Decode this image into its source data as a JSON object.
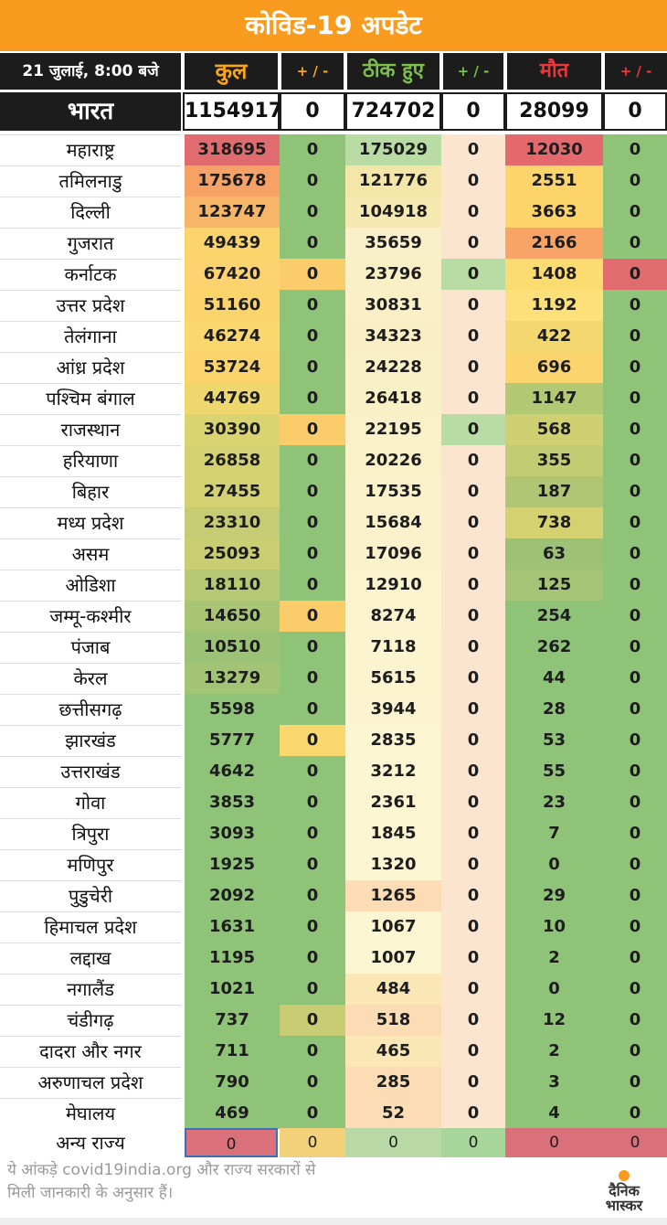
{
  "title": "कोविड-19 अपडेट",
  "header": {
    "date": "21 जुलाई, 8:00 बजे",
    "total": "कुल",
    "recovered": "ठीक हुए",
    "deaths": "मौत",
    "delta": "+ / -"
  },
  "india": {
    "name": "भारत",
    "total": "1154917",
    "total_delta": "0",
    "recovered": "724702",
    "recovered_delta": "0",
    "deaths": "28099",
    "deaths_delta": "0"
  },
  "columns": [
    "state",
    "total",
    "total_delta",
    "recovered",
    "recovered_delta",
    "deaths",
    "deaths_delta"
  ],
  "states": [
    {
      "name": "महाराष्ट्र",
      "v": [
        "318695",
        "0",
        "175029",
        "0",
        "12030",
        "0"
      ],
      "c": [
        "#e06c6f",
        "#8fc478",
        "#b9dca4",
        "#fbe5cf",
        "#e4696c",
        "#8fc478"
      ]
    },
    {
      "name": "तमिलनाडु",
      "v": [
        "175678",
        "0",
        "121776",
        "0",
        "2551",
        "0"
      ],
      "c": [
        "#f6a266",
        "#8fc478",
        "#f3e6a8",
        "#fbe5cf",
        "#fdd46a",
        "#8fc478"
      ]
    },
    {
      "name": "दिल्ली",
      "v": [
        "123747",
        "0",
        "104918",
        "0",
        "3663",
        "0"
      ],
      "c": [
        "#f7b568",
        "#8fc478",
        "#f6e8b1",
        "#fbe5cf",
        "#fdd46a",
        "#8fc478"
      ]
    },
    {
      "name": "गुजरात",
      "v": [
        "49439",
        "0",
        "35659",
        "0",
        "2166",
        "0"
      ],
      "c": [
        "#fbd56c",
        "#8fc478",
        "#f9efc8",
        "#fbe5cf",
        "#f8a466",
        "#8fc478"
      ]
    },
    {
      "name": "कर्नाटक",
      "v": [
        "67420",
        "0",
        "23796",
        "0",
        "1408",
        "0"
      ],
      "c": [
        "#fcd36e",
        "#fbcd6a",
        "#faf0c6",
        "#b9dca4",
        "#fcdc70",
        "#e06c6f"
      ]
    },
    {
      "name": "उत्तर प्रदेश",
      "v": [
        "51160",
        "0",
        "30831",
        "0",
        "1192",
        "0"
      ],
      "c": [
        "#fbd56c",
        "#8fc478",
        "#faefc5",
        "#fbe5cf",
        "#fde07a",
        "#8fc478"
      ]
    },
    {
      "name": "तेलंगाना",
      "v": [
        "46274",
        "0",
        "34323",
        "0",
        "422",
        "0"
      ],
      "c": [
        "#fbd86e",
        "#8fc478",
        "#faeec4",
        "#fbe5cf",
        "#f3d76f",
        "#8fc478"
      ]
    },
    {
      "name": "आंध्र प्रदेश",
      "v": [
        "53724",
        "0",
        "24228",
        "0",
        "696",
        "0"
      ],
      "c": [
        "#fbd56c",
        "#8fc478",
        "#faf0c6",
        "#fbe5cf",
        "#fbd46e",
        "#8fc478"
      ]
    },
    {
      "name": "पश्चिम बंगाल",
      "v": [
        "44769",
        "0",
        "26418",
        "0",
        "1147",
        "0"
      ],
      "c": [
        "#eed86e",
        "#8fc478",
        "#faf0c6",
        "#fbe5cf",
        "#b3c873",
        "#8fc478"
      ]
    },
    {
      "name": "राजस्थान",
      "v": [
        "30390",
        "0",
        "22195",
        "0",
        "568",
        "0"
      ],
      "c": [
        "#d9d471",
        "#fbcd6a",
        "#faf1c8",
        "#b9dca4",
        "#cfd072",
        "#8fc478"
      ]
    },
    {
      "name": "हरियाणा",
      "v": [
        "26858",
        "0",
        "20226",
        "0",
        "355",
        "0"
      ],
      "c": [
        "#d4d172",
        "#8fc478",
        "#faf1c9",
        "#fbe5cf",
        "#c2cc73",
        "#8fc478"
      ]
    },
    {
      "name": "बिहार",
      "v": [
        "27455",
        "0",
        "17535",
        "0",
        "187",
        "0"
      ],
      "c": [
        "#d4d172",
        "#8fc478",
        "#fbf2cb",
        "#fbe5cf",
        "#b0c674",
        "#8fc478"
      ]
    },
    {
      "name": "मध्य प्रदेश",
      "v": [
        "23310",
        "0",
        "15684",
        "0",
        "738",
        "0"
      ],
      "c": [
        "#c6cc73",
        "#8fc478",
        "#fbf2cc",
        "#fbe5cf",
        "#d5d171",
        "#8fc478"
      ]
    },
    {
      "name": "असम",
      "v": [
        "25093",
        "0",
        "17096",
        "0",
        "63",
        "0"
      ],
      "c": [
        "#c9ce73",
        "#8fc478",
        "#fbf2cb",
        "#fbe5cf",
        "#9dc276",
        "#8fc478"
      ]
    },
    {
      "name": "ओडिशा",
      "v": [
        "18110",
        "0",
        "12910",
        "0",
        "125",
        "0"
      ],
      "c": [
        "#b7c874",
        "#8fc478",
        "#fbf3cd",
        "#fbe5cf",
        "#a5c475",
        "#8fc478"
      ]
    },
    {
      "name": "जम्मू-कश्मीर",
      "v": [
        "14650",
        "0",
        "8274",
        "0",
        "254",
        "0"
      ],
      "c": [
        "#a8c575",
        "#fbcd6a",
        "#fbf3ce",
        "#fbe5cf",
        "#8fc478",
        "#8fc478"
      ]
    },
    {
      "name": "पंजाब",
      "v": [
        "10510",
        "0",
        "7118",
        "0",
        "262",
        "0"
      ],
      "c": [
        "#9cc276",
        "#8fc478",
        "#fcf4cf",
        "#fbe5cf",
        "#8fc478",
        "#8fc478"
      ]
    },
    {
      "name": "केरल",
      "v": [
        "13279",
        "0",
        "5615",
        "0",
        "44",
        "0"
      ],
      "c": [
        "#a3c375",
        "#8fc478",
        "#fcf4cf",
        "#fbe5cf",
        "#8fc478",
        "#8fc478"
      ]
    },
    {
      "name": "छत्तीसगढ़",
      "v": [
        "5598",
        "0",
        "3944",
        "0",
        "28",
        "0"
      ],
      "c": [
        "#8fc478",
        "#8fc478",
        "#fcf4d0",
        "#fbe5cf",
        "#8fc478",
        "#8fc478"
      ]
    },
    {
      "name": "झारखंड",
      "v": [
        "5777",
        "0",
        "2835",
        "0",
        "53",
        "0"
      ],
      "c": [
        "#8fc478",
        "#fbd86e",
        "#fcf5d1",
        "#fbe5cf",
        "#8fc478",
        "#8fc478"
      ]
    },
    {
      "name": "उत्तराखंड",
      "v": [
        "4642",
        "0",
        "3212",
        "0",
        "55",
        "0"
      ],
      "c": [
        "#8fc478",
        "#8fc478",
        "#fcf5d1",
        "#fbe5cf",
        "#8fc478",
        "#8fc478"
      ]
    },
    {
      "name": "गोवा",
      "v": [
        "3853",
        "0",
        "2361",
        "0",
        "23",
        "0"
      ],
      "c": [
        "#8fc478",
        "#8fc478",
        "#fcf5d1",
        "#fbe5cf",
        "#8fc478",
        "#8fc478"
      ]
    },
    {
      "name": "त्रिपुरा",
      "v": [
        "3093",
        "0",
        "1845",
        "0",
        "7",
        "0"
      ],
      "c": [
        "#8fc478",
        "#8fc478",
        "#fcf5d1",
        "#fbe5cf",
        "#8fc478",
        "#8fc478"
      ]
    },
    {
      "name": "मणिपुर",
      "v": [
        "1925",
        "0",
        "1320",
        "0",
        "0",
        "0"
      ],
      "c": [
        "#8fc478",
        "#8fc478",
        "#fcf5d1",
        "#fbe5cf",
        "#8fc478",
        "#8fc478"
      ]
    },
    {
      "name": "पुडुचेरी",
      "v": [
        "2092",
        "0",
        "1265",
        "0",
        "29",
        "0"
      ],
      "c": [
        "#8fc478",
        "#8fc478",
        "#fbdcb4",
        "#fbe5cf",
        "#8fc478",
        "#8fc478"
      ]
    },
    {
      "name": "हिमाचल प्रदेश",
      "v": [
        "1631",
        "0",
        "1067",
        "0",
        "10",
        "0"
      ],
      "c": [
        "#8fc478",
        "#8fc478",
        "#fcf5d1",
        "#fbe5cf",
        "#8fc478",
        "#8fc478"
      ]
    },
    {
      "name": "लद्दाख",
      "v": [
        "1195",
        "0",
        "1007",
        "0",
        "2",
        "0"
      ],
      "c": [
        "#8fc478",
        "#8fc478",
        "#fcf5d1",
        "#fbe5cf",
        "#8fc478",
        "#8fc478"
      ]
    },
    {
      "name": "नगालैंड",
      "v": [
        "1021",
        "0",
        "484",
        "0",
        "0",
        "0"
      ],
      "c": [
        "#8fc478",
        "#8fc478",
        "#fbe7b5",
        "#fbe5cf",
        "#8fc478",
        "#8fc478"
      ]
    },
    {
      "name": "चंडीगढ़",
      "v": [
        "737",
        "0",
        "518",
        "0",
        "12",
        "0"
      ],
      "c": [
        "#8fc478",
        "#c8cd73",
        "#fbdcb4",
        "#fbe5cf",
        "#8fc478",
        "#8fc478"
      ]
    },
    {
      "name": "दादरा और नगर",
      "v": [
        "711",
        "0",
        "465",
        "0",
        "2",
        "0"
      ],
      "c": [
        "#8fc478",
        "#8fc478",
        "#fbe7b5",
        "#fbe5cf",
        "#8fc478",
        "#8fc478"
      ]
    },
    {
      "name": "अरुणाचल प्रदेश",
      "v": [
        "790",
        "0",
        "285",
        "0",
        "3",
        "0"
      ],
      "c": [
        "#8fc478",
        "#8fc478",
        "#fbdcb4",
        "#fbe5cf",
        "#8fc478",
        "#8fc478"
      ]
    },
    {
      "name": "मेघालय",
      "v": [
        "469",
        "0",
        "52",
        "0",
        "4",
        "0"
      ],
      "c": [
        "#8fc478",
        "#8fc478",
        "#fbdcb4",
        "#fbe5cf",
        "#8fc478",
        "#8fc478"
      ]
    }
  ],
  "other": {
    "name": "अन्य राज्य",
    "v": [
      "0",
      "0",
      "0",
      "0",
      "0",
      "0"
    ],
    "c": [
      "#d9707a",
      "#f3d07a",
      "#b8d9a6",
      "#a8d59a",
      "#d9707a",
      "#d9707a"
    ]
  },
  "footer": {
    "line1": "ये आंकड़े covid19india.org और राज्य सरकारों से",
    "line2": "मिली जानकारी के अनुसार हैं।"
  },
  "logo": {
    "line1": "दैनिक",
    "line2": "भास्कर"
  }
}
